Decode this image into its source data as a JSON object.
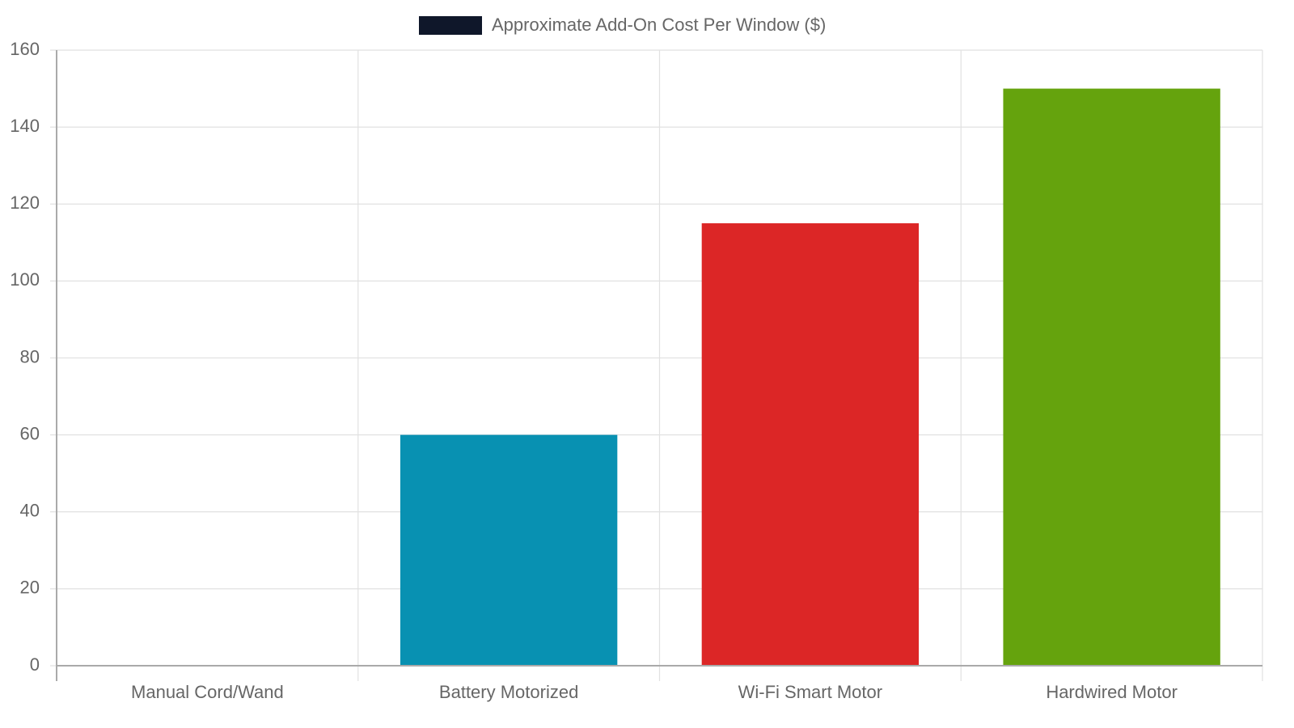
{
  "chart_data": {
    "type": "bar",
    "categories": [
      "Manual Cord/Wand",
      "Battery Motorized",
      "Wi-Fi Smart Motor",
      "Hardwired Motor"
    ],
    "series": [
      {
        "name": "Approximate Add-On Cost Per Window ($)",
        "color": "#0f172a",
        "values": [
          0,
          60,
          115,
          150
        ],
        "bar_colors": [
          "#0891b2",
          "#0891b2",
          "#dc2626",
          "#65a30d"
        ]
      }
    ],
    "ylim": [
      0,
      160
    ],
    "yticks": [
      0,
      20,
      40,
      60,
      80,
      100,
      120,
      140,
      160
    ],
    "grid": true,
    "legend": "top"
  }
}
